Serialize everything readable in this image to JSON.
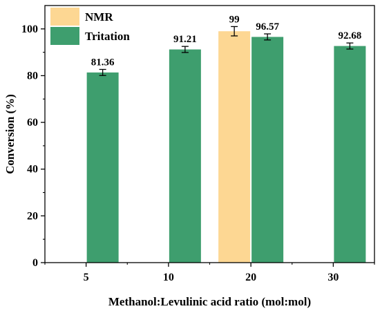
{
  "chart_data": {
    "type": "bar",
    "title": "",
    "xlabel": "Methanol:Levulinic acid ratio (mol:mol)",
    "ylabel": "Conversion (%)",
    "ylim": [
      0,
      110
    ],
    "yticks": [
      "0",
      "20",
      "40",
      "60",
      "80",
      "100"
    ],
    "categories": [
      "5",
      "10",
      "20",
      "30"
    ],
    "legend_position": "top-left",
    "grid": false,
    "series": [
      {
        "name": "NMR",
        "color": "#FDD793",
        "values": [
          null,
          null,
          99,
          null
        ],
        "errors": [
          null,
          null,
          2.0,
          null
        ],
        "labels": [
          "",
          "",
          "99",
          ""
        ]
      },
      {
        "name": "Tritation",
        "color": "#3E9E6E",
        "values": [
          81.36,
          91.21,
          96.57,
          92.68
        ],
        "errors": [
          1.3,
          1.3,
          1.3,
          1.3
        ],
        "labels": [
          "81.36",
          "91.21",
          "96.57",
          "92.68"
        ]
      }
    ]
  }
}
